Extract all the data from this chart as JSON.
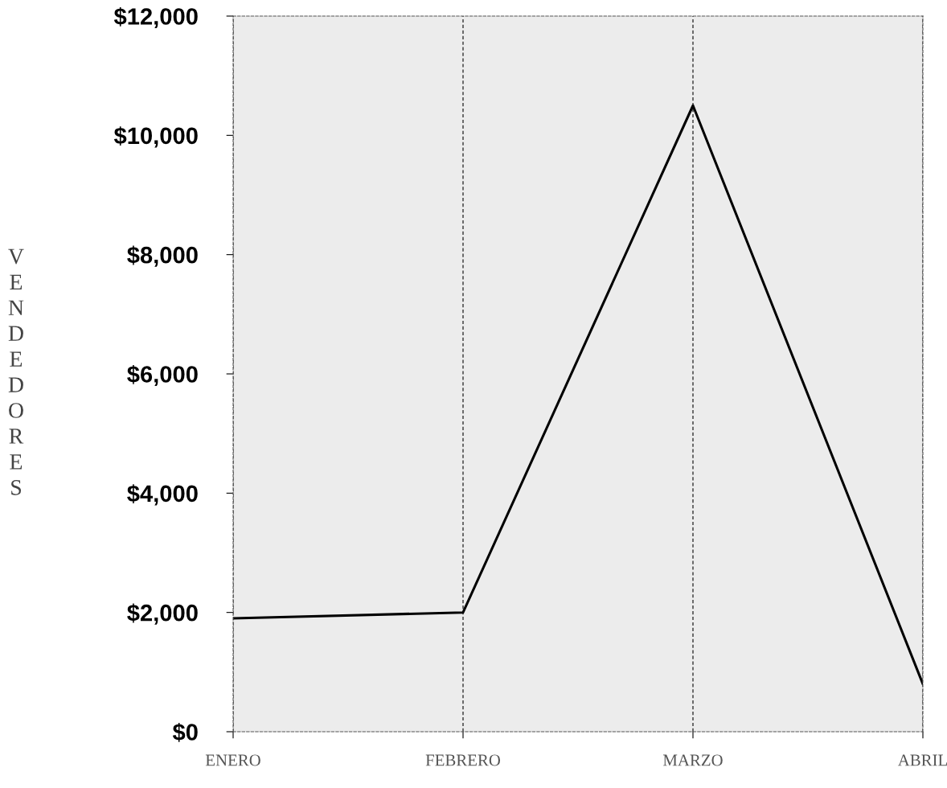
{
  "chart_data": {
    "type": "line",
    "ylabel": "VENDEDORES",
    "categories": [
      "ENERO",
      "FEBRERO",
      "MARZO",
      "ABRIL"
    ],
    "series": [
      {
        "color": "#000000",
        "values": [
          1900,
          2000,
          10500,
          800
        ]
      }
    ],
    "ylim": [
      0,
      12000
    ],
    "yticks": [
      {
        "value": 0,
        "label": "$0"
      },
      {
        "value": 2000,
        "label": "$2,000"
      },
      {
        "value": 4000,
        "label": "$4,000"
      },
      {
        "value": 6000,
        "label": "$6,000"
      },
      {
        "value": 8000,
        "label": "$8,000"
      },
      {
        "value": 10000,
        "label": "$10,000"
      },
      {
        "value": 12000,
        "label": "$12,000"
      }
    ],
    "grid": "x",
    "legend": false,
    "marker": "none",
    "line_style": "solid"
  }
}
